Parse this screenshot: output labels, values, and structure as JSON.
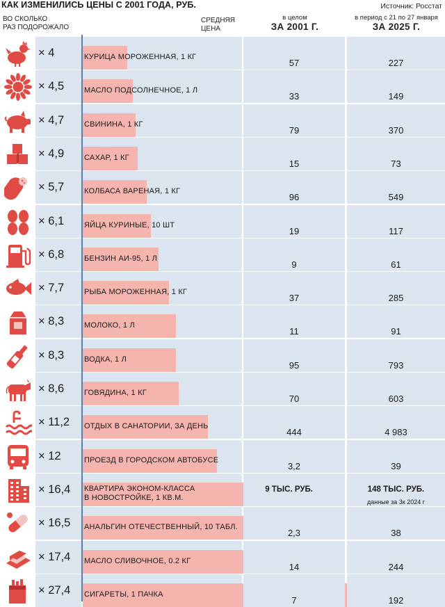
{
  "title": "КАК ИЗМЕНИЛИСЬ ЦЕНЫ С 2001 ГОДА, РУБ.",
  "source": "Источник: Росстат",
  "headers": {
    "times_line1": "ВО СКОЛЬКО",
    "times_line2": "РАЗ ПОДОРОЖАЛО",
    "price_line1": "СРЕДНЯЯ",
    "price_line2": "ЦЕНА",
    "c2001_small": "в целом",
    "c2001_big": "ЗА 2001 Г.",
    "c2025_small": "в период с 21 по 27 января",
    "c2025_big": "ЗА 2025 Г."
  },
  "colors": {
    "bar": "#f6b4ae",
    "row_bg": "#dbe5ef",
    "axis": "#5b7ea8",
    "icon": "#e04b45"
  },
  "chart_data": {
    "type": "bar",
    "orientation": "horizontal",
    "categories": [
      [
        "КУРИЦА МОРОЖЕННАЯ, 1 КГ"
      ],
      [
        "МАСЛО ПОДСОЛНЕЧНОЕ, 1 Л"
      ],
      [
        "СВИНИНА, 1 КГ"
      ],
      [
        "САХАР, 1 КГ"
      ],
      [
        "КОЛБАСА ВАРЕНАЯ, 1 КГ"
      ],
      [
        "ЯЙЦА КУРИНЫЕ, 10 ШТ"
      ],
      [
        "БЕНЗИН АИ-95, 1 Л"
      ],
      [
        "РЫБА МОРОЖЕННАЯ, 1 КГ"
      ],
      [
        "МОЛОКО, 1 Л"
      ],
      [
        "ВОДКА, 1 Л"
      ],
      [
        "ГОВЯДИНА, 1 КГ"
      ],
      [
        "ОТДЫХ В САНАТОРИИ, ЗА ДЕНЬ"
      ],
      [
        "ПРОЕЗД В ГОРОДСКОМ АВТОБУСЕ"
      ],
      [
        "КВАРТИРА ЭКОНОМ-КЛАССА",
        "В НОВОСТРОЙКЕ, 1 КВ.М."
      ],
      [
        "АНАЛЬГИН ОТЕЧЕСТВЕННЫЙ, 10 ТАБЛ."
      ],
      [
        "МАСЛО СЛИВОЧНОЕ, 0.2 КГ"
      ],
      [
        "СИГАРЕТЫ, 1 ПАЧКА"
      ]
    ],
    "multipliers": [
      "× 4",
      "× 4,5",
      "× 4,7",
      "× 4,9",
      "× 5,7",
      "× 6,1",
      "× 6,8",
      "× 7,7",
      "× 8,3",
      "× 8,3",
      "× 8,6",
      "× 11,2",
      "× 12",
      "× 16,4",
      "× 16,5",
      "× 17,4",
      "× 27,4"
    ],
    "values": [
      4,
      4.5,
      4.7,
      4.9,
      5.7,
      6.1,
      6.8,
      7.7,
      8.3,
      8.3,
      8.6,
      11.2,
      12,
      16.4,
      16.5,
      17.4,
      27.4
    ],
    "price_2001": [
      "57",
      "33",
      "79",
      "15",
      "96",
      "19",
      "9",
      "37",
      "11",
      "95",
      "70",
      "444",
      "3,2",
      "9 ТЫС. РУБ.",
      "2,3",
      "14",
      "7"
    ],
    "price_2025": [
      "227",
      "149",
      "370",
      "73",
      "549",
      "117",
      "61",
      "285",
      "91",
      "793",
      "603",
      "4 983",
      "39",
      "148 ТЫС. РУБ.",
      "38",
      "244",
      "192"
    ],
    "notes_2025": [
      "",
      "",
      "",
      "",
      "",
      "",
      "",
      "",
      "",
      "",
      "",
      "",
      "",
      "данные за 3к 2024 г",
      "",
      "",
      ""
    ],
    "icons": [
      "chicken-icon",
      "sunflower-icon",
      "pig-icon",
      "sugar-cubes-icon",
      "sausage-icon",
      "eggs-icon",
      "fuel-pump-icon",
      "fish-icon",
      "milk-carton-icon",
      "bottle-icon",
      "cow-icon",
      "pool-icon",
      "bus-icon",
      "building-icon",
      "pill-icon",
      "butter-icon",
      "cigarettes-icon"
    ]
  }
}
